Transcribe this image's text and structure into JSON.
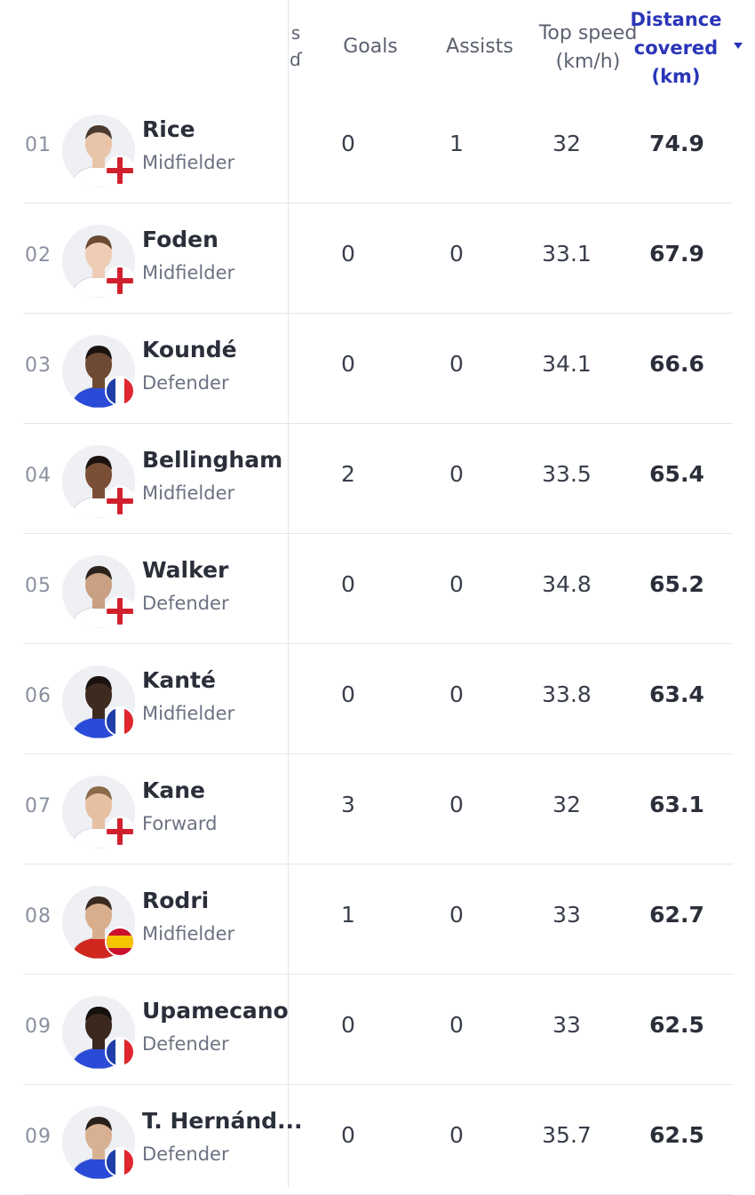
{
  "header": {
    "clipped_col": "s\nɗ",
    "goals": "Goals",
    "assists": "Assists",
    "top_speed": "Top speed\n(km/h)",
    "distance": "Distance\ncovered\n(km)"
  },
  "colors": {
    "accent": "#2a35b8",
    "england_shirt": "#1d2a6b",
    "france_shirt": "#2a4bd7",
    "spain_shirt": "#d0271e"
  },
  "players": [
    {
      "rank": "01",
      "name": "Rice",
      "position": "Midfielder",
      "goals": "0",
      "assists": "1",
      "top_speed": "32",
      "distance": "74.9",
      "flag": "england",
      "skin": "#e8c4a8",
      "hair": "#4a3a2e",
      "shirt": "#ffffff"
    },
    {
      "rank": "02",
      "name": "Foden",
      "position": "Midfielder",
      "goals": "0",
      "assists": "0",
      "top_speed": "33.1",
      "distance": "67.9",
      "flag": "england",
      "skin": "#efcdb4",
      "hair": "#6a4a33",
      "shirt": "#ffffff"
    },
    {
      "rank": "03",
      "name": "Koundé",
      "position": "Defender",
      "goals": "0",
      "assists": "0",
      "top_speed": "34.1",
      "distance": "66.6",
      "flag": "france",
      "skin": "#6e4a34",
      "hair": "#1a1310",
      "shirt": "#2a4bd7"
    },
    {
      "rank": "04",
      "name": "Bellingham",
      "position": "Midfielder",
      "goals": "2",
      "assists": "0",
      "top_speed": "33.5",
      "distance": "65.4",
      "flag": "england",
      "skin": "#7a4f36",
      "hair": "#1c1410",
      "shirt": "#ffffff"
    },
    {
      "rank": "05",
      "name": "Walker",
      "position": "Defender",
      "goals": "0",
      "assists": "0",
      "top_speed": "34.8",
      "distance": "65.2",
      "flag": "england",
      "skin": "#c9a083",
      "hair": "#2b221c",
      "shirt": "#ffffff"
    },
    {
      "rank": "06",
      "name": "Kanté",
      "position": "Midfielder",
      "goals": "0",
      "assists": "0",
      "top_speed": "33.8",
      "distance": "63.4",
      "flag": "france",
      "skin": "#3f2a20",
      "hair": "#1a1310",
      "shirt": "#2a4bd7"
    },
    {
      "rank": "07",
      "name": "Kane",
      "position": "Forward",
      "goals": "3",
      "assists": "0",
      "top_speed": "32",
      "distance": "63.1",
      "flag": "england",
      "skin": "#e6c0a2",
      "hair": "#8a6a48",
      "shirt": "#ffffff"
    },
    {
      "rank": "08",
      "name": "Rodri",
      "position": "Midfielder",
      "goals": "1",
      "assists": "0",
      "top_speed": "33",
      "distance": "62.7",
      "flag": "spain",
      "skin": "#d9ae8c",
      "hair": "#3a2a20",
      "shirt": "#d0271e"
    },
    {
      "rank": "09",
      "name": "Upamecano",
      "position": "Defender",
      "goals": "0",
      "assists": "0",
      "top_speed": "33",
      "distance": "62.5",
      "flag": "france",
      "skin": "#3a281e",
      "hair": "#15100d",
      "shirt": "#2a4bd7"
    },
    {
      "rank": "09",
      "name": "T. Hernánd...",
      "position": "Defender",
      "goals": "0",
      "assists": "0",
      "top_speed": "35.7",
      "distance": "62.5",
      "flag": "france",
      "skin": "#d8b092",
      "hair": "#2a201a",
      "shirt": "#2a4bd7"
    }
  ]
}
